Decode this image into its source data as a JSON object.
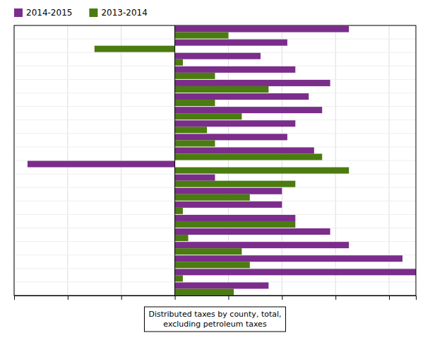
{
  "chart_data": {
    "type": "bar",
    "orientation": "horizontal",
    "categories": [
      null,
      null,
      null,
      null,
      null,
      null,
      null,
      null,
      null,
      null,
      null,
      null,
      null,
      null,
      null,
      null,
      null,
      null,
      null,
      null
    ],
    "series": [
      {
        "name": "2014-2015",
        "color": "#7B2D8B",
        "values": [
          6.5,
          4.2,
          3.2,
          4.5,
          5.8,
          5.0,
          5.5,
          4.5,
          4.2,
          5.2,
          -5.5,
          1.5,
          4.0,
          4.0,
          4.5,
          5.8,
          6.5,
          8.5,
          9.0,
          3.5
        ]
      },
      {
        "name": "2013-2014",
        "color": "#4A7C0F",
        "values": [
          2.0,
          -3.0,
          0.3,
          1.5,
          3.5,
          1.5,
          2.5,
          1.2,
          1.5,
          5.5,
          6.5,
          4.5,
          2.8,
          0.3,
          4.5,
          0.5,
          2.5,
          2.8,
          0.3,
          2.2
        ]
      }
    ],
    "xlim": [
      -6.0,
      9.0
    ],
    "xticks": [
      -6,
      -4,
      -2,
      0,
      2,
      4,
      6,
      8
    ],
    "grid": true,
    "tick_labels": false,
    "annotations": [
      "Distributed taxes by county, total,\n    excluding petroleum taxes"
    ]
  }
}
